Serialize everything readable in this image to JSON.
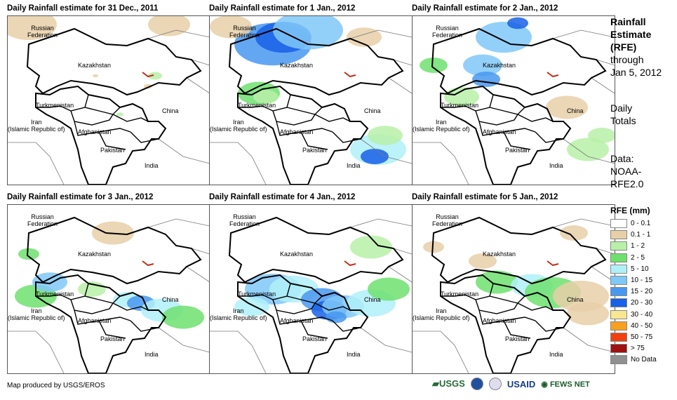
{
  "panels": [
    {
      "title": "Daily Rainfall estimate for 31 Dec., 2011",
      "rain": "light"
    },
    {
      "title": "Daily Rainfall estimate for 1 Jan., 2012",
      "rain": "north"
    },
    {
      "title": "Daily Rainfall estimate for 2 Jan., 2012",
      "rain": "center"
    },
    {
      "title": "Daily Rainfall estimate for 3 Jan., 2012",
      "rain": "west"
    },
    {
      "title": "Daily Rainfall estimate for 4 Jan., 2012",
      "rain": "heavy"
    },
    {
      "title": "Daily Rainfall estimate for 5 Jan., 2012",
      "rain": "east"
    }
  ],
  "map_labels": {
    "russia": "Russian\nFederation",
    "kazakhstan": "Kazakhstan",
    "turkmenistan": "Turkmenistan",
    "iran": "Iran\n(Islamic Republic of)",
    "afghanistan": "Afghanistan",
    "pakistan": "Pakistan",
    "china": "China",
    "india": "India"
  },
  "side": {
    "title_line1": "Rainfall",
    "title_line2": "Estimate",
    "title_line3": "(RFE)",
    "through": "through",
    "date": "Jan 5, 2012",
    "daily": "Daily",
    "totals": "Totals",
    "data": "Data:",
    "source1": "NOAA-",
    "source2": "RFE2.0"
  },
  "legend": {
    "title": "RFE (mm)",
    "items": [
      {
        "label": "0 - 0.1",
        "color": "#ffffff"
      },
      {
        "label": "0.1 - 1",
        "color": "#e8cfa8"
      },
      {
        "label": "1 - 2",
        "color": "#b8f0a8"
      },
      {
        "label": "2 - 5",
        "color": "#6ee06e"
      },
      {
        "label": "5 - 10",
        "color": "#b0f0f8"
      },
      {
        "label": "10 - 15",
        "color": "#80c8f8"
      },
      {
        "label": "15 - 20",
        "color": "#4898f0"
      },
      {
        "label": "20 - 30",
        "color": "#1860e8"
      },
      {
        "label": "30 - 40",
        "color": "#f8e890"
      },
      {
        "label": "40 - 50",
        "color": "#f8a020"
      },
      {
        "label": "50 - 75",
        "color": "#f04010"
      },
      {
        "label": "> 75",
        "color": "#a01010"
      },
      {
        "label": "No Data",
        "color": "#909090"
      }
    ]
  },
  "footer": "Map produced by USGS/EROS",
  "logos": {
    "usgs": "USGS",
    "usaid": "USAID",
    "fews": "FEWS NET"
  }
}
